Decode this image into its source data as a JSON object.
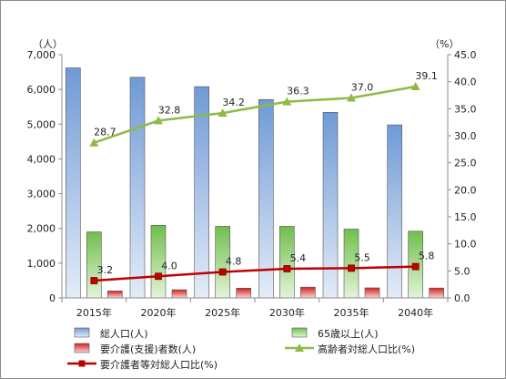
{
  "chart_data": {
    "type": "bar",
    "categories": [
      "2015年",
      "2020年",
      "2025年",
      "2030年",
      "2035年",
      "2040年"
    ],
    "y_left_unit": "（人）",
    "y_right_unit": "（%）",
    "ylim_left": [
      0,
      7000
    ],
    "ylim_right": [
      0,
      45
    ],
    "y_left_ticks": [
      "0",
      "1,000",
      "2,000",
      "3,000",
      "4,000",
      "5,000",
      "6,000",
      "7,000"
    ],
    "y_right_ticks": [
      "0.0",
      "5.0",
      "10.0",
      "15.0",
      "20.0",
      "25.0",
      "30.0",
      "35.0",
      "40.0",
      "45.0"
    ],
    "grid": false,
    "legend_position": "bottom",
    "bar_series": [
      {
        "name": "総人口(人)",
        "values": [
          6620,
          6350,
          6080,
          5710,
          5340,
          4980
        ],
        "color": "#7ea6dc"
      },
      {
        "name": "65歳以上(人)",
        "values": [
          1900,
          2090,
          2060,
          2060,
          1980,
          1920
        ],
        "color": "#7ec95a"
      },
      {
        "name": "要介護(支援)者数(人)",
        "values": [
          200,
          235,
          280,
          310,
          290,
          285
        ],
        "color": "#d9302c"
      }
    ],
    "line_series": [
      {
        "name": "高齢者対総人口比(%)",
        "values": [
          28.7,
          32.8,
          34.2,
          36.3,
          37.0,
          39.1
        ],
        "labels": [
          "28.7",
          "32.8",
          "34.2",
          "36.3",
          "37.0",
          "39.1"
        ],
        "color": "#8fba48",
        "marker": "triangle"
      },
      {
        "name": "要介護者等対総人口比(%)",
        "values": [
          3.2,
          4.0,
          4.8,
          5.4,
          5.5,
          5.8
        ],
        "labels": [
          "3.2",
          "4.0",
          "4.8",
          "5.4",
          "5.5",
          "5.8"
        ],
        "color": "#c00000",
        "marker": "square"
      }
    ]
  }
}
